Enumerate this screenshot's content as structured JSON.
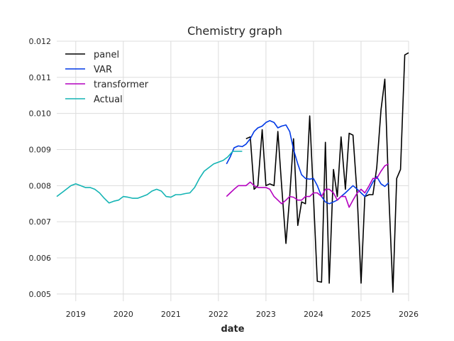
{
  "chart_data": {
    "type": "line",
    "title": "Chemistry graph",
    "xlabel": "date",
    "ylabel": "",
    "xlim": [
      2018.6,
      2026.0
    ],
    "ylim": [
      0.0048,
      0.012
    ],
    "x_ticks": [
      2019,
      2020,
      2021,
      2022,
      2023,
      2024,
      2025,
      2026
    ],
    "x_tick_labels": [
      "2019",
      "2020",
      "2021",
      "2022",
      "2023",
      "2024",
      "2025",
      "2026"
    ],
    "y_ticks": [
      0.005,
      0.006,
      0.007,
      0.008,
      0.009,
      0.01,
      0.011,
      0.012
    ],
    "y_tick_labels": [
      "0.005",
      "0.006",
      "0.007",
      "0.008",
      "0.009",
      "0.010",
      "0.011",
      "0.012"
    ],
    "grid": true,
    "legend_position": "upper-left",
    "series": [
      {
        "name": "panel",
        "color": "#000000",
        "x": [
          2022.58,
          2022.67,
          2022.75,
          2022.83,
          2022.92,
          2023.0,
          2023.08,
          2023.17,
          2023.25,
          2023.33,
          2023.42,
          2023.5,
          2023.58,
          2023.67,
          2023.75,
          2023.83,
          2023.92,
          2024.0,
          2024.08,
          2024.17,
          2024.25,
          2024.33,
          2024.42,
          2024.5,
          2024.58,
          2024.67,
          2024.75,
          2024.83,
          2024.92,
          2025.0,
          2025.08,
          2025.17,
          2025.25,
          2025.33,
          2025.42,
          2025.5,
          2025.58,
          2025.67,
          2025.75,
          2025.83,
          2025.92,
          2026.0
        ],
        "y": [
          0.0093,
          0.00935,
          0.0079,
          0.008,
          0.00955,
          0.008,
          0.00805,
          0.008,
          0.0095,
          0.008,
          0.0064,
          0.0077,
          0.0093,
          0.0069,
          0.00755,
          0.0075,
          0.00993,
          0.0077,
          0.00535,
          0.00533,
          0.0092,
          0.0053,
          0.00845,
          0.0077,
          0.00935,
          0.0079,
          0.00945,
          0.0094,
          0.0077,
          0.0053,
          0.0077,
          0.00775,
          0.00775,
          0.0085,
          0.0101,
          0.01095,
          0.0079,
          0.00505,
          0.0082,
          0.00845,
          0.01162,
          0.01168
        ]
      },
      {
        "name": "VAR",
        "color": "#0039e6",
        "x": [
          2022.17,
          2022.25,
          2022.33,
          2022.42,
          2022.5,
          2022.58,
          2022.67,
          2022.75,
          2022.83,
          2022.92,
          2023.0,
          2023.08,
          2023.17,
          2023.25,
          2023.33,
          2023.42,
          2023.5,
          2023.58,
          2023.67,
          2023.75,
          2023.83,
          2023.92,
          2024.0,
          2024.08,
          2024.17,
          2024.25,
          2024.33,
          2024.42,
          2024.5,
          2024.58,
          2024.67,
          2024.75,
          2024.83,
          2024.92,
          2025.0,
          2025.08,
          2025.17,
          2025.25,
          2025.33,
          2025.42,
          2025.5,
          2025.58
        ],
        "y": [
          0.0086,
          0.0088,
          0.00905,
          0.0091,
          0.00908,
          0.00915,
          0.0093,
          0.0095,
          0.0096,
          0.00965,
          0.00975,
          0.0098,
          0.00975,
          0.0096,
          0.00965,
          0.00968,
          0.0095,
          0.009,
          0.0086,
          0.0083,
          0.0082,
          0.00818,
          0.0082,
          0.008,
          0.0077,
          0.00755,
          0.0075,
          0.00755,
          0.0076,
          0.0077,
          0.0078,
          0.0079,
          0.008,
          0.0079,
          0.0078,
          0.0077,
          0.0079,
          0.0081,
          0.00825,
          0.00805,
          0.00798,
          0.00808
        ]
      },
      {
        "name": "transformer",
        "color": "#b400bf",
        "x": [
          2022.17,
          2022.25,
          2022.33,
          2022.42,
          2022.5,
          2022.58,
          2022.67,
          2022.75,
          2022.83,
          2022.92,
          2023.0,
          2023.08,
          2023.17,
          2023.25,
          2023.33,
          2023.42,
          2023.5,
          2023.58,
          2023.67,
          2023.75,
          2023.83,
          2023.92,
          2024.0,
          2024.08,
          2024.17,
          2024.25,
          2024.33,
          2024.42,
          2024.5,
          2024.58,
          2024.67,
          2024.75,
          2024.83,
          2024.92,
          2025.0,
          2025.08,
          2025.17,
          2025.25,
          2025.33,
          2025.42,
          2025.5,
          2025.58
        ],
        "y": [
          0.0077,
          0.0078,
          0.0079,
          0.008,
          0.008,
          0.008,
          0.0081,
          0.008,
          0.00795,
          0.00795,
          0.00795,
          0.0079,
          0.0077,
          0.0076,
          0.0075,
          0.0076,
          0.0077,
          0.00768,
          0.0076,
          0.0076,
          0.0077,
          0.0077,
          0.0078,
          0.0078,
          0.0077,
          0.0079,
          0.0079,
          0.0078,
          0.0076,
          0.0077,
          0.0077,
          0.0074,
          0.0076,
          0.0078,
          0.0079,
          0.0078,
          0.008,
          0.0082,
          0.0082,
          0.0084,
          0.00855,
          0.0086
        ]
      },
      {
        "name": "Actual",
        "color": "#14b4b4",
        "x": [
          2018.6,
          2018.75,
          2018.9,
          2019.0,
          2019.1,
          2019.2,
          2019.3,
          2019.4,
          2019.5,
          2019.6,
          2019.7,
          2019.8,
          2019.9,
          2020.0,
          2020.1,
          2020.2,
          2020.3,
          2020.4,
          2020.5,
          2020.6,
          2020.7,
          2020.8,
          2020.9,
          2021.0,
          2021.1,
          2021.2,
          2021.3,
          2021.4,
          2021.5,
          2021.6,
          2021.7,
          2021.8,
          2021.9,
          2022.0,
          2022.1,
          2022.2,
          2022.3,
          2022.4,
          2022.5
        ],
        "y": [
          0.0077,
          0.00785,
          0.008,
          0.00805,
          0.008,
          0.00795,
          0.00795,
          0.0079,
          0.0078,
          0.00765,
          0.00752,
          0.00757,
          0.0076,
          0.0077,
          0.00768,
          0.00765,
          0.00765,
          0.0077,
          0.00775,
          0.00785,
          0.0079,
          0.00785,
          0.0077,
          0.00768,
          0.00775,
          0.00775,
          0.00778,
          0.0078,
          0.00795,
          0.0082,
          0.0084,
          0.0085,
          0.0086,
          0.00865,
          0.0087,
          0.0088,
          0.00895,
          0.00895,
          0.00895
        ]
      }
    ]
  }
}
